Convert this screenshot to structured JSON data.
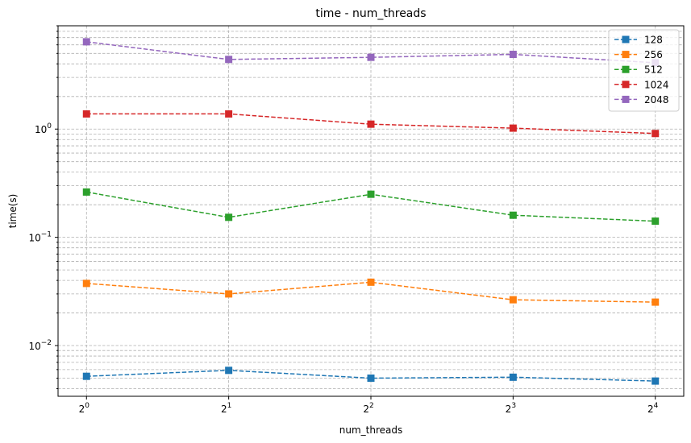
{
  "chart_data": {
    "type": "line",
    "title": "time - num_threads",
    "xlabel": "num_threads",
    "ylabel": "time(s)",
    "x": [
      1,
      2,
      4,
      8,
      16
    ],
    "x_scale": "log2",
    "x_tick_base": "2",
    "x_tick_exponents": [
      "0",
      "1",
      "2",
      "3",
      "4"
    ],
    "y_scale": "log10",
    "ylim": [
      0.0034,
      9.0
    ],
    "y_tick_base": "10",
    "y_tick_exponents": [
      "−2",
      "−1",
      "0"
    ],
    "y_tick_one_label": "10",
    "grid": true,
    "legend_position": "top-right",
    "series": [
      {
        "name": "128",
        "color": "#1f77b4",
        "values": [
          0.0052,
          0.0059,
          0.005,
          0.0051,
          0.0047
        ]
      },
      {
        "name": "256",
        "color": "#ff7f0e",
        "values": [
          0.0375,
          0.03,
          0.0385,
          0.0265,
          0.0252
        ]
      },
      {
        "name": "512",
        "color": "#2ca02c",
        "values": [
          0.262,
          0.153,
          0.25,
          0.16,
          0.141
        ]
      },
      {
        "name": "1024",
        "color": "#d62728",
        "values": [
          1.38,
          1.38,
          1.11,
          1.02,
          0.91
        ]
      },
      {
        "name": "2048",
        "color": "#9467bd",
        "values": [
          6.4,
          4.4,
          4.6,
          4.9,
          4.1
        ]
      }
    ]
  }
}
